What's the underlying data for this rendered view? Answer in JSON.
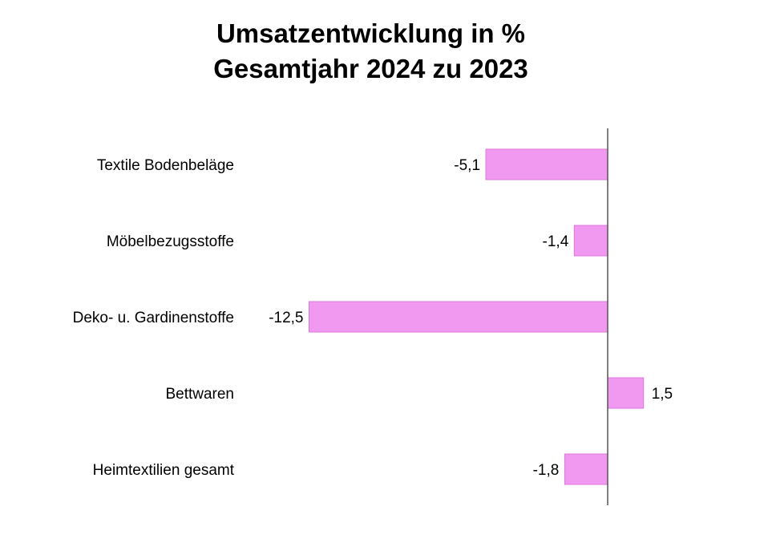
{
  "chart_data": {
    "type": "bar",
    "orientation": "horizontal",
    "title": "Umsatzentwicklung in %",
    "subtitle": "Gesamtjahr 2024 zu 2023",
    "categories": [
      "Textile Bodenbeläge",
      "Möbelbezugsstoffe",
      "Deko- u. Gardinenstoffe",
      "Bettwaren",
      "Heimtextilien gesamt"
    ],
    "values": [
      -5.1,
      -1.4,
      -12.5,
      1.5,
      -1.8
    ],
    "value_labels": [
      "-5,1",
      "-1,4",
      "-12,5",
      "1,5",
      "-1,8"
    ],
    "xlim": [
      -12.5,
      1.5
    ],
    "bar_color": "#f199f1",
    "bar_edge_color": "#dd77dd",
    "axis_color": "#555555",
    "grid": false,
    "legend": "none"
  }
}
